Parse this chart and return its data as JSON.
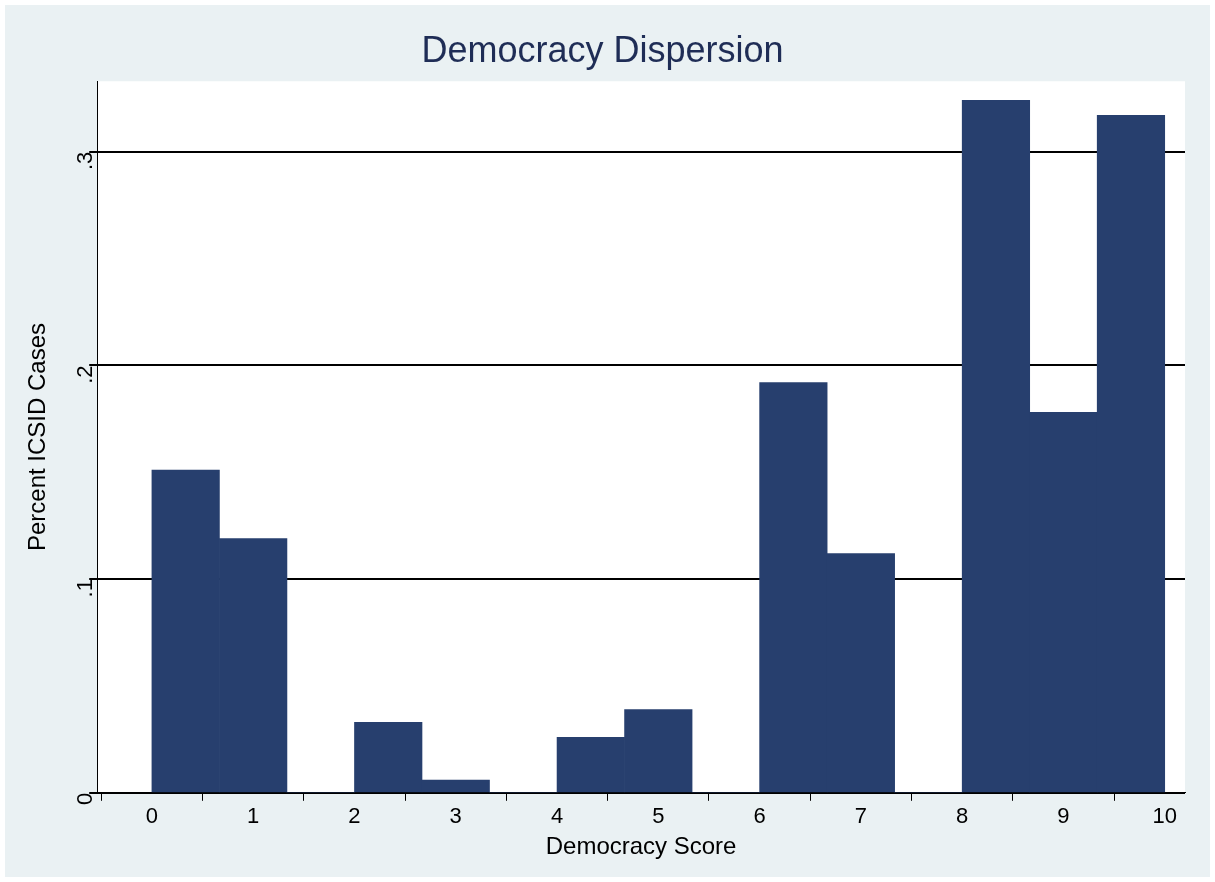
{
  "chart_data": {
    "type": "histogram",
    "title": "Democracy Dispersion",
    "xlabel": "Democracy Score",
    "ylabel": "Percent ICSID Cases",
    "bins": [
      0,
      0.667,
      1.333,
      2,
      2.667,
      3.333,
      4,
      4.667,
      5.333,
      6,
      6.667,
      7.333,
      8,
      8.667,
      9.333,
      10
    ],
    "values": [
      0.151,
      0.119,
      0,
      0.033,
      0.006,
      0,
      0.026,
      0.039,
      0,
      0.192,
      0.112,
      0,
      0.324,
      0.178,
      0.317
    ],
    "color": "#273f6e",
    "xlim": [
      -0.54,
      10.2
    ],
    "xticks": [
      0,
      1,
      2,
      3,
      4,
      5,
      6,
      7,
      8,
      9,
      10
    ],
    "ylim": [
      0,
      0.333
    ],
    "yticks": [
      0,
      {
        "value": 0.1,
        "label": ".1"
      },
      {
        "value": 0.2,
        "label": ".2"
      },
      {
        "value": 0.3,
        "label": ".3"
      }
    ],
    "grid": "y"
  }
}
